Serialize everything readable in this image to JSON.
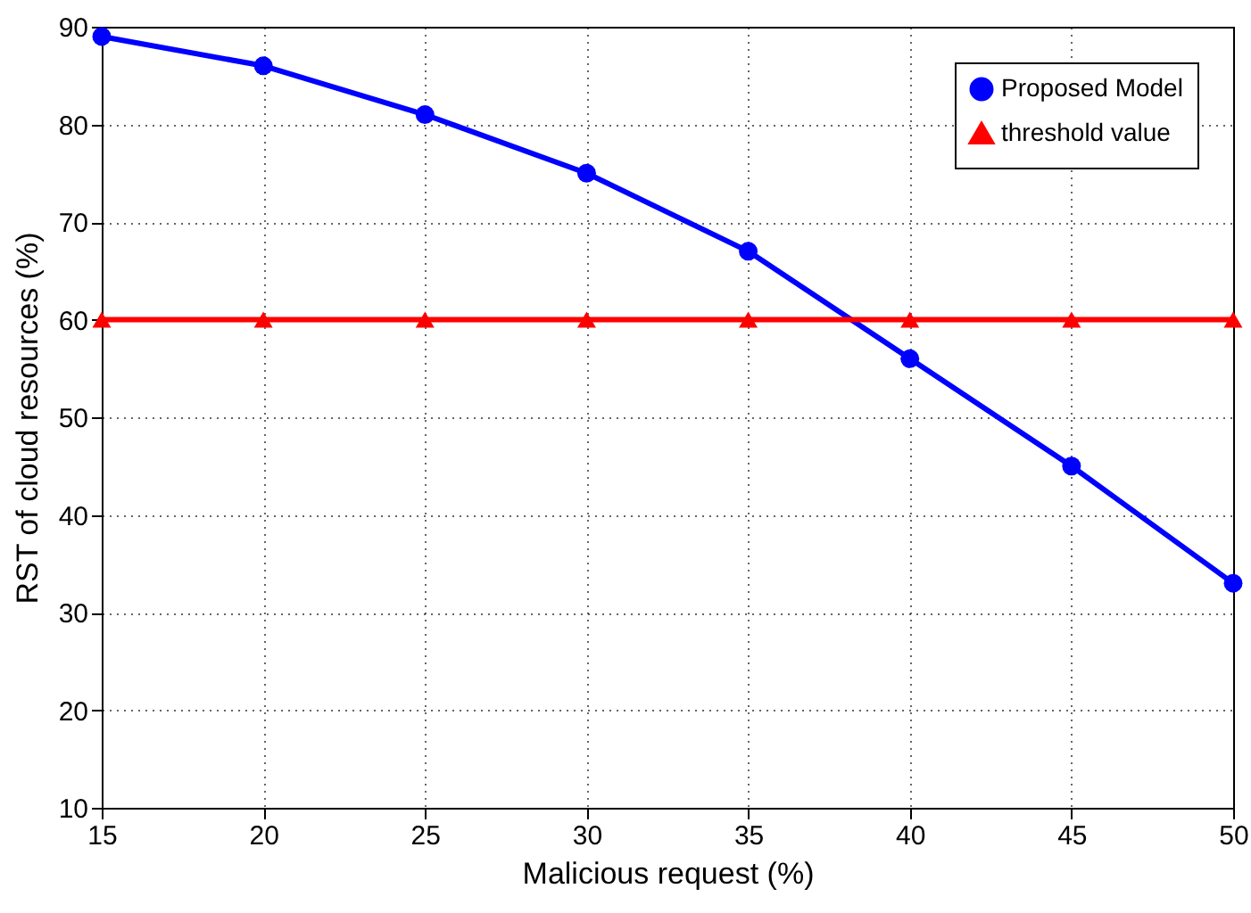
{
  "chart_data": {
    "type": "line",
    "xlabel": "Malicious request (%)",
    "ylabel": "RST of cloud resources (%)",
    "x": [
      15,
      20,
      25,
      30,
      35,
      40,
      45,
      50
    ],
    "series": [
      {
        "name": "Proposed Model",
        "color": "#0000ff",
        "marker": "circle",
        "values": [
          89,
          86,
          81,
          75,
          67,
          56,
          45,
          33
        ]
      },
      {
        "name": "threshold value",
        "color": "#ff0000",
        "marker": "triangle",
        "values": [
          60,
          60,
          60,
          60,
          60,
          60,
          60,
          60
        ]
      }
    ],
    "xlim": [
      15,
      50
    ],
    "xticks": [
      15,
      20,
      25,
      30,
      35,
      40,
      45,
      50
    ],
    "ylim": [
      10,
      90
    ],
    "yticks": [
      10,
      20,
      30,
      40,
      50,
      60,
      70,
      80,
      90
    ],
    "grid": true,
    "legend": "top right",
    "line_style": "solid"
  }
}
